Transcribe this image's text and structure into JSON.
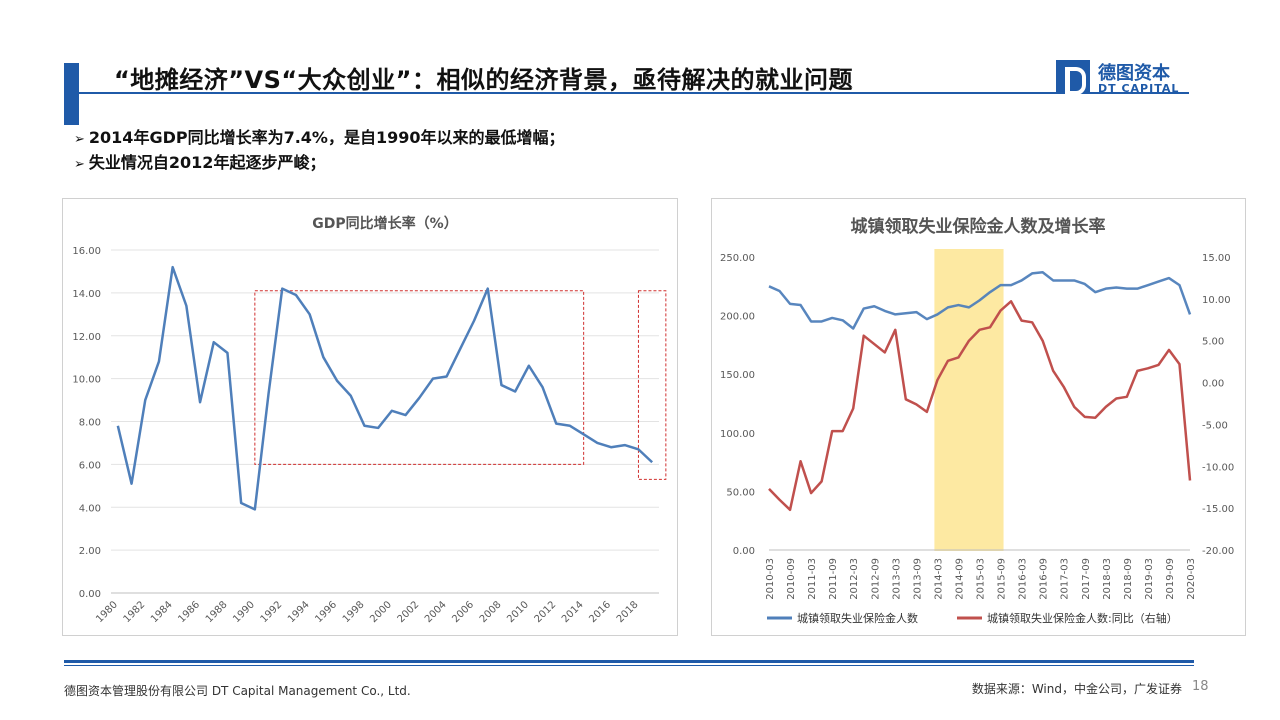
{
  "slide": {
    "title": "“地摊经济”VS“大众创业”：相似的经济背景，亟待解决的就业问题",
    "logo_cn": "德图资本",
    "logo_en": "DT CAPITAL",
    "bullets": [
      "2014年GDP同比增长率为7.4%，是自1990年以来的最低增幅；",
      "失业情况自2012年起逐步严峻；"
    ],
    "footer_left": "德图资本管理股份有限公司  DT Capital Management Co., Ltd.",
    "footer_right": "数据来源：Wind，中金公司，广发证券",
    "page_number": "18",
    "colors": {
      "accent": "#1f5aa8",
      "series_blue": "#4f7fba",
      "series_red": "#c0504d",
      "highlight": "#fde9a2",
      "dash_box": "#d0302f"
    }
  },
  "chart_data": [
    {
      "type": "line",
      "title": "GDP同比增长率（%）",
      "x": [
        1980,
        1981,
        1982,
        1983,
        1984,
        1985,
        1986,
        1987,
        1988,
        1989,
        1990,
        1991,
        1992,
        1993,
        1994,
        1995,
        1996,
        1997,
        1998,
        1999,
        2000,
        2001,
        2002,
        2003,
        2004,
        2005,
        2006,
        2007,
        2008,
        2009,
        2010,
        2011,
        2012,
        2013,
        2014,
        2015,
        2016,
        2017,
        2018,
        2019
      ],
      "x_tick_labels": [
        "1980",
        "1982",
        "1984",
        "1986",
        "1988",
        "1990",
        "1992",
        "1994",
        "1996",
        "1998",
        "2000",
        "2002",
        "2004",
        "2006",
        "2008",
        "2010",
        "2012",
        "2014",
        "2016",
        "2018"
      ],
      "series": [
        {
          "values": [
            7.8,
            5.1,
            9.0,
            10.8,
            15.2,
            13.4,
            8.9,
            11.7,
            11.2,
            4.2,
            3.9,
            9.3,
            14.2,
            13.9,
            13.0,
            11.0,
            9.9,
            9.2,
            7.8,
            7.7,
            8.5,
            8.3,
            9.1,
            10.0,
            10.1,
            11.4,
            12.7,
            14.2,
            9.7,
            9.4,
            10.6,
            9.6,
            7.9,
            7.8,
            7.4,
            7.0,
            6.8,
            6.9,
            6.7,
            6.1
          ]
        }
      ],
      "y_tick_labels": [
        "16.00",
        "14.00",
        "12.00",
        "10.00",
        "8.00",
        "6.00",
        "4.00",
        "2.00",
        "0.00"
      ],
      "ylim": [
        0,
        16
      ],
      "grid": true,
      "annotations": [
        {
          "kind": "dashed-box",
          "x_from": 1990,
          "x_to": 2014,
          "y_from": 6.0,
          "y_to": 14.1
        },
        {
          "kind": "dashed-box",
          "x_from": 2018,
          "x_to": 2020,
          "y_from": 5.3,
          "y_to": 14.1
        }
      ]
    },
    {
      "type": "line",
      "title": "城镇领取失业保险金人数及增长率",
      "x": [
        "2010-03",
        "2010-06",
        "2010-09",
        "2010-12",
        "2011-03",
        "2011-06",
        "2011-09",
        "2011-12",
        "2012-03",
        "2012-06",
        "2012-09",
        "2012-12",
        "2013-03",
        "2013-06",
        "2013-09",
        "2013-12",
        "2014-03",
        "2014-06",
        "2014-09",
        "2014-12",
        "2015-03",
        "2015-06",
        "2015-09",
        "2015-12",
        "2016-03",
        "2016-06",
        "2016-09",
        "2016-12",
        "2017-03",
        "2017-06",
        "2017-09",
        "2017-12",
        "2018-03",
        "2018-06",
        "2018-09",
        "2018-12",
        "2019-03",
        "2019-06",
        "2019-09",
        "2019-12",
        "2020-03"
      ],
      "x_tick_labels": [
        "2010-03",
        "2010-09",
        "2011-03",
        "2011-09",
        "2012-03",
        "2012-09",
        "2013-03",
        "2013-09",
        "2014-03",
        "2014-09",
        "2015-03",
        "2015-09",
        "2016-03",
        "2016-09",
        "2017-03",
        "2017-09",
        "2018-03",
        "2018-09",
        "2019-03",
        "2019-09",
        "2020-03"
      ],
      "series": [
        {
          "name": "城镇领取失业保险金人数",
          "axis": "left",
          "values": [
            225,
            221,
            210,
            209,
            195,
            195,
            198,
            196,
            189,
            206,
            208,
            204,
            201,
            202,
            203,
            197,
            201,
            207,
            209,
            207,
            213,
            220,
            226,
            226,
            230,
            236,
            237,
            230,
            230,
            230,
            227,
            220,
            223,
            224,
            223,
            223,
            226,
            229,
            232,
            226,
            201
          ]
        },
        {
          "name": "城镇领取失业保险金人数:同比（右轴）",
          "axis": "right",
          "values": [
            -12.7,
            -14.0,
            -15.2,
            -9.4,
            -13.2,
            -11.8,
            -5.8,
            -5.8,
            -3.1,
            5.6,
            4.6,
            3.6,
            6.3,
            -2.0,
            -2.6,
            -3.5,
            0.3,
            2.6,
            3.0,
            5.0,
            6.3,
            6.6,
            8.6,
            9.7,
            7.4,
            7.2,
            5.0,
            1.4,
            -0.5,
            -2.9,
            -4.1,
            -4.2,
            -2.9,
            -1.9,
            -1.7,
            1.4,
            1.7,
            2.1,
            3.9,
            2.2,
            -11.7
          ]
        }
      ],
      "y_tick_labels_left": [
        "250.00",
        "200.00",
        "150.00",
        "100.00",
        "50.00",
        "0.00"
      ],
      "y_tick_labels_right": [
        "15.00",
        "10.00",
        "5.00",
        "0.00",
        "-5.00",
        "-10.00",
        "-15.00",
        "-20.00"
      ],
      "ylim_left": [
        0,
        250
      ],
      "ylim_right": [
        -20,
        15
      ],
      "legend_position": "bottom",
      "grid": false,
      "highlight_range": [
        "2014-03",
        "2015-09"
      ]
    }
  ]
}
